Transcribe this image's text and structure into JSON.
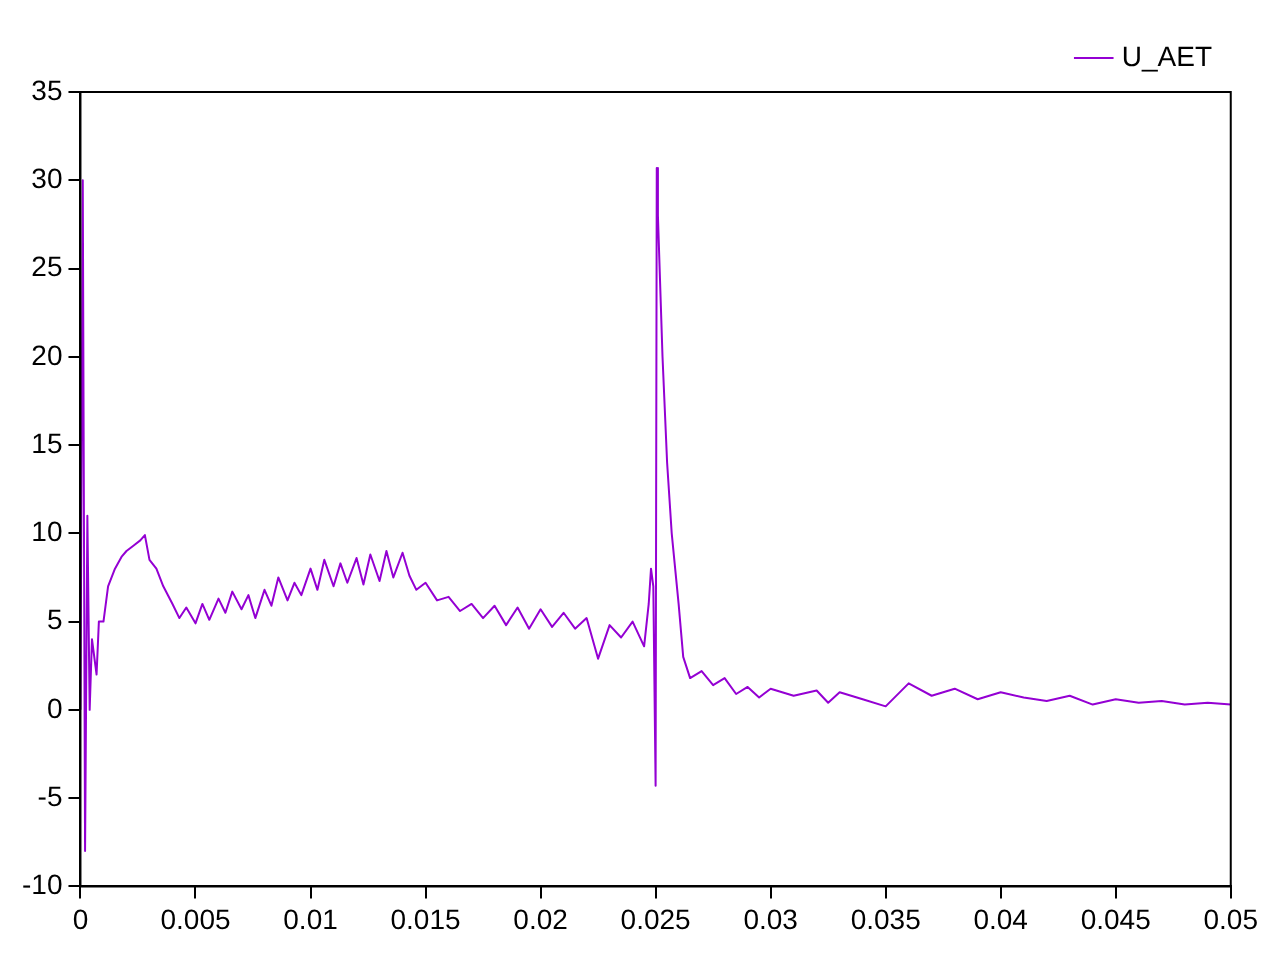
{
  "chart_data": {
    "type": "line",
    "xlim": [
      0,
      0.05
    ],
    "xticks": [
      0,
      0.005,
      0.01,
      0.015,
      0.02,
      0.025,
      0.03,
      0.035,
      0.04,
      0.045,
      0.05
    ],
    "ylim": [
      -10,
      35
    ],
    "yticks": [
      -10,
      -5,
      0,
      5,
      10,
      15,
      20,
      25,
      30,
      35
    ],
    "grid": false,
    "legend": "top right",
    "marker": "none",
    "line_style": "solid",
    "series": [
      {
        "name": "U_AET",
        "color": "#9400d3",
        "x": [
          0,
          0.0001,
          0.0002,
          0.0003,
          0.0004,
          0.0005,
          0.0007,
          0.0008,
          0.001,
          0.0012,
          0.0015,
          0.0018,
          0.002,
          0.0023,
          0.0026,
          0.0028,
          0.003,
          0.0033,
          0.0036,
          0.004,
          0.0043,
          0.0046,
          0.005,
          0.0053,
          0.0056,
          0.006,
          0.0063,
          0.0066,
          0.007,
          0.0073,
          0.0076,
          0.008,
          0.0083,
          0.0086,
          0.009,
          0.0093,
          0.0096,
          0.01,
          0.0103,
          0.0106,
          0.011,
          0.0113,
          0.0116,
          0.012,
          0.0123,
          0.0126,
          0.013,
          0.0133,
          0.0136,
          0.014,
          0.0143,
          0.0146,
          0.015,
          0.0155,
          0.016,
          0.0165,
          0.017,
          0.0175,
          0.018,
          0.0185,
          0.019,
          0.0195,
          0.02,
          0.0205,
          0.021,
          0.0215,
          0.022,
          0.0225,
          0.023,
          0.0235,
          0.024,
          0.0245,
          0.0247,
          0.0248,
          0.0249,
          0.025,
          0.02505,
          0.0251,
          0.0253,
          0.0255,
          0.0257,
          0.026,
          0.0262,
          0.0265,
          0.027,
          0.0275,
          0.028,
          0.0285,
          0.029,
          0.0295,
          0.03,
          0.031,
          0.032,
          0.0325,
          0.033,
          0.034,
          0.035,
          0.036,
          0.037,
          0.038,
          0.039,
          0.04,
          0.041,
          0.042,
          0.043,
          0.044,
          0.045,
          0.046,
          0.047,
          0.048,
          0.049,
          0.05
        ],
        "values": [
          0,
          30,
          -8,
          11,
          0,
          4,
          2,
          5,
          5,
          7,
          8,
          8.7,
          9,
          9.3,
          9.6,
          9.9,
          8.5,
          8,
          7,
          6,
          5.2,
          5.8,
          4.9,
          6,
          5.1,
          6.3,
          5.5,
          6.7,
          5.7,
          6.5,
          5.2,
          6.8,
          5.9,
          7.5,
          6.2,
          7.2,
          6.5,
          8,
          6.8,
          8.5,
          7,
          8.3,
          7.2,
          8.6,
          7.1,
          8.8,
          7.3,
          9,
          7.5,
          8.9,
          7.6,
          6.8,
          7.2,
          6.2,
          6.4,
          5.6,
          6,
          5.2,
          5.9,
          4.8,
          5.8,
          4.6,
          5.7,
          4.7,
          5.5,
          4.6,
          5.2,
          2.9,
          4.8,
          4.1,
          5,
          3.6,
          6,
          8,
          7,
          -4.3,
          30.7,
          28,
          20,
          14,
          10,
          6,
          3,
          1.8,
          2.2,
          1.4,
          1.8,
          0.9,
          1.3,
          0.7,
          1.2,
          0.8,
          1.1,
          0.4,
          1,
          0.6,
          0.2,
          1.5,
          0.8,
          1.2,
          0.6,
          1,
          0.7,
          0.5,
          0.8,
          0.3,
          0.6,
          0.4,
          0.5,
          0.3,
          0.4,
          0.3
        ]
      }
    ]
  }
}
